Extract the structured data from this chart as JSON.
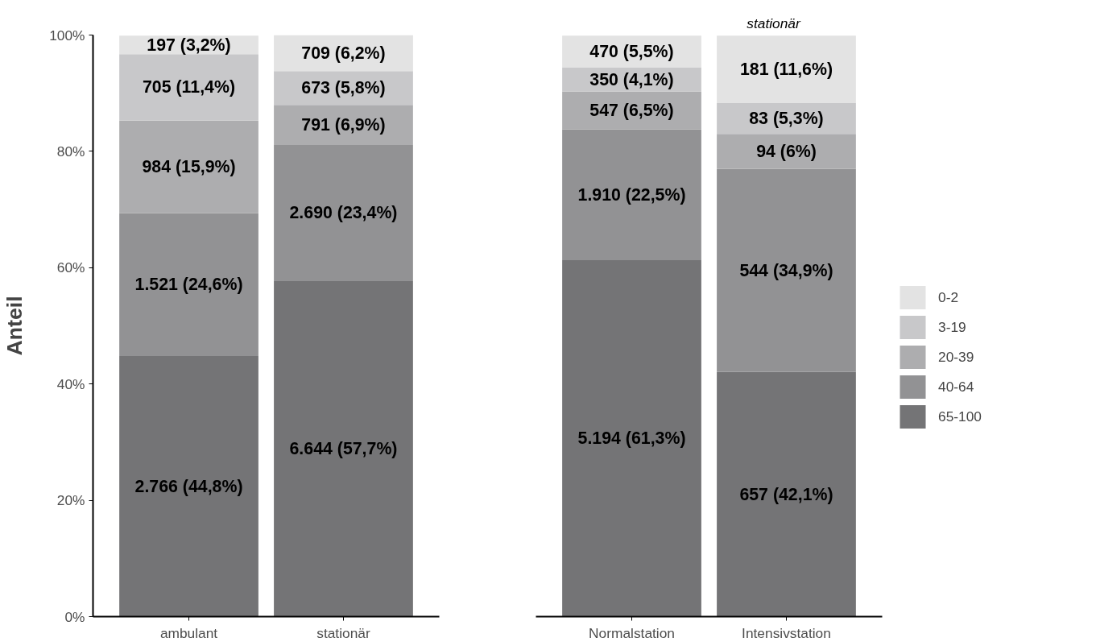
{
  "chart_data": [
    {
      "type": "bar",
      "stacked": true,
      "ylabel": "Anteil",
      "categories": [
        "ambulant",
        "stationär"
      ],
      "ylim": [
        0,
        100
      ],
      "yticks": [
        {
          "value": 0,
          "label": "0%"
        },
        {
          "value": 20,
          "label": "20%"
        },
        {
          "value": 40,
          "label": "40%"
        },
        {
          "value": 60,
          "label": "60%"
        },
        {
          "value": 80,
          "label": "80%"
        },
        {
          "value": 100,
          "label": "100%"
        }
      ],
      "grid": false,
      "legend": false,
      "series": [
        {
          "color": "#747476",
          "values": [
            44.8,
            57.7
          ],
          "value_labels": [
            "2.766 (44,8%)",
            "6.644 (57,7%)"
          ]
        },
        {
          "color": "#929294",
          "values": [
            24.6,
            23.4
          ],
          "value_labels": [
            "1.521 (24,6%)",
            "2.690 (23,4%)"
          ]
        },
        {
          "color": "#adadaf",
          "values": [
            15.9,
            6.9
          ],
          "value_labels": [
            "984 (15,9%)",
            "791 (6,9%)"
          ]
        },
        {
          "color": "#c8c8ca",
          "values": [
            11.4,
            5.8
          ],
          "value_labels": [
            "705 (11,4%)",
            "673 (5,8%)"
          ]
        },
        {
          "color": "#e3e3e3",
          "values": [
            3.2,
            6.2
          ],
          "value_labels": [
            "197 (3,2%)",
            "709 (6,2%)"
          ]
        }
      ]
    },
    {
      "type": "bar",
      "stacked": true,
      "title": "stationär",
      "categories": [
        "Normalstation",
        "Intensivstation"
      ],
      "ylim": [
        0,
        100
      ],
      "tick_labels": "x",
      "grid": false,
      "legend": "right",
      "series": [
        {
          "name": "65-100",
          "color": "#747476",
          "values": [
            61.3,
            42.1
          ],
          "value_labels": [
            "5.194 (61,3%)",
            "657 (42,1%)"
          ]
        },
        {
          "name": "40-64",
          "color": "#929294",
          "values": [
            22.5,
            34.9
          ],
          "value_labels": [
            "1.910 (22,5%)",
            "544 (34,9%)"
          ]
        },
        {
          "name": "20-39",
          "color": "#adadaf",
          "values": [
            6.5,
            6
          ],
          "value_labels": [
            "547 (6,5%)",
            "94 (6%)"
          ]
        },
        {
          "name": "3-19",
          "color": "#c8c8ca",
          "values": [
            4.1,
            5.3
          ],
          "value_labels": [
            "350 (4,1%)",
            "83 (5,3%)"
          ]
        },
        {
          "name": "0-2",
          "color": "#e3e3e3",
          "values": [
            5.5,
            11.6
          ],
          "value_labels": [
            "470 (5,5%)",
            "181 (11,6%)"
          ]
        }
      ]
    }
  ]
}
